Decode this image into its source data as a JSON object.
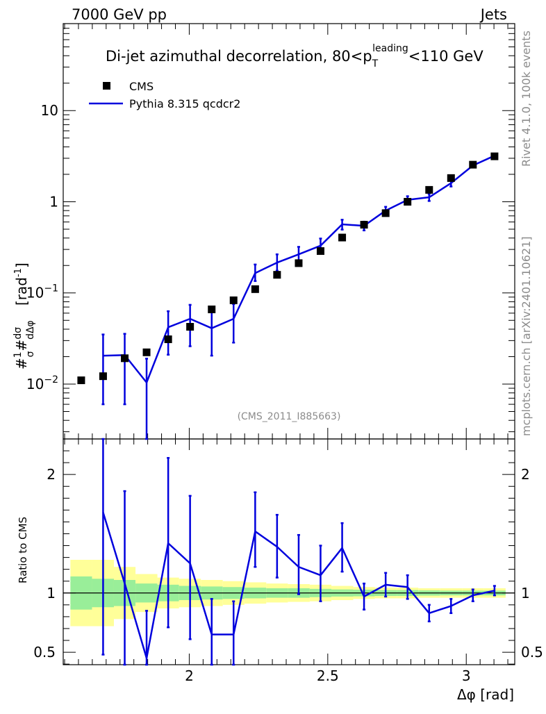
{
  "header": {
    "energy_label": "7000 GeV pp",
    "process_label": "Jets",
    "rivet_note": "Rivet 4.1.0,  100k events",
    "source_note": "mcplots.cern.ch [arXiv:2401.10621]",
    "analysis_tag": "(CMS_2011_I885663)"
  },
  "chart_data": {
    "type": "line",
    "title": "Di-jet azimuthal decorrelation, 80<p_T^leading<110 GeV",
    "title_pre": "Di-jet azimuthal decorrelation, 80<p",
    "title_sub": "T",
    "title_sup": "leading",
    "title_post": "<110 GeV",
    "xlabel": "Δφ [rad]",
    "ylabel": "#frac{1}{σ}#frac{dσ}{dΔφ} [rad⁻¹]",
    "ylabel_main": "[rad",
    "ylabel_exp": "-1",
    "ylabel_close": "]",
    "ratio_ylabel": "Ratio to CMS",
    "xlim": [
      1.545,
      3.175
    ],
    "ylim": [
      0.0025,
      90
    ],
    "yscale": "log",
    "ratio_ylim": [
      0.395,
      2.3
    ],
    "x_ticks": [
      {
        "value": 2.0,
        "label": "2"
      },
      {
        "value": 2.5,
        "label": "2.5"
      },
      {
        "value": 3.0,
        "label": "3"
      }
    ],
    "y_ticks": [
      {
        "value": 0.01,
        "label": "10",
        "exp": "−2"
      },
      {
        "value": 0.1,
        "label": "10",
        "exp": "−1"
      },
      {
        "value": 1,
        "label": "1",
        "exp": ""
      },
      {
        "value": 10,
        "label": "10",
        "exp": ""
      }
    ],
    "ratio_ticks": [
      {
        "value": 0.5,
        "label": "0.5"
      },
      {
        "value": 1,
        "label": "1"
      },
      {
        "value": 2,
        "label": "2"
      }
    ],
    "legend": [
      {
        "name": "CMS",
        "marker": "square",
        "color": "#000000"
      },
      {
        "name": "Pythia 8.315 qcdcr2",
        "marker": "line",
        "color": "#0000dd"
      }
    ],
    "bins": [
      {
        "lo": 1.571,
        "hi": 1.649
      },
      {
        "lo": 1.649,
        "hi": 1.728
      },
      {
        "lo": 1.728,
        "hi": 1.806
      },
      {
        "lo": 1.806,
        "hi": 1.885
      },
      {
        "lo": 1.885,
        "hi": 1.963
      },
      {
        "lo": 1.963,
        "hi": 2.042
      },
      {
        "lo": 2.042,
        "hi": 2.121
      },
      {
        "lo": 2.121,
        "hi": 2.199
      },
      {
        "lo": 2.199,
        "hi": 2.278
      },
      {
        "lo": 2.278,
        "hi": 2.356
      },
      {
        "lo": 2.356,
        "hi": 2.435
      },
      {
        "lo": 2.435,
        "hi": 2.513
      },
      {
        "lo": 2.513,
        "hi": 2.592
      },
      {
        "lo": 2.592,
        "hi": 2.67
      },
      {
        "lo": 2.67,
        "hi": 2.749
      },
      {
        "lo": 2.749,
        "hi": 2.827
      },
      {
        "lo": 2.827,
        "hi": 2.906
      },
      {
        "lo": 2.906,
        "hi": 2.985
      },
      {
        "lo": 2.985,
        "hi": 3.063
      },
      {
        "lo": 3.063,
        "hi": 3.142
      }
    ],
    "cms": {
      "x": [
        1.61,
        1.689,
        1.767,
        1.846,
        1.924,
        2.003,
        2.081,
        2.16,
        2.238,
        2.317,
        2.395,
        2.474,
        2.552,
        2.631,
        2.709,
        2.788,
        2.866,
        2.945,
        3.024,
        3.102
      ],
      "y": [
        0.011,
        0.0122,
        0.0192,
        0.0223,
        0.031,
        0.0425,
        0.066,
        0.083,
        0.11,
        0.158,
        0.212,
        0.288,
        0.405,
        0.56,
        0.75,
        1.0,
        1.35,
        1.82,
        2.55,
        3.15
      ]
    },
    "mc": {
      "x": [
        1.689,
        1.767,
        1.846,
        1.924,
        2.003,
        2.081,
        2.16,
        2.238,
        2.317,
        2.395,
        2.474,
        2.552,
        2.631,
        2.709,
        2.788,
        2.866,
        2.945,
        3.024,
        3.102
      ],
      "y": [
        0.0205,
        0.0208,
        0.0104,
        0.042,
        0.052,
        0.041,
        0.052,
        0.165,
        0.215,
        0.265,
        0.33,
        0.565,
        0.545,
        0.8,
        1.05,
        1.12,
        1.6,
        2.5,
        3.2
      ],
      "err_low": [
        0.0145,
        0.0148,
        0.0104,
        0.021,
        0.026,
        0.0205,
        0.0235,
        0.03,
        0.04,
        0.045,
        0.055,
        0.07,
        0.06,
        0.07,
        0.09,
        0.1,
        0.13,
        0.1,
        0.1
      ],
      "err_high": [
        0.0145,
        0.0148,
        0.0086,
        0.021,
        0.022,
        0.0205,
        0.0235,
        0.04,
        0.05,
        0.055,
        0.065,
        0.07,
        0.06,
        0.08,
        0.1,
        0.1,
        0.12,
        0.12,
        0.1
      ]
    },
    "ratio": {
      "x": [
        1.689,
        1.767,
        1.846,
        1.924,
        2.003,
        2.081,
        2.16,
        2.238,
        2.317,
        2.395,
        2.474,
        2.552,
        2.631,
        2.709,
        2.788,
        2.866,
        2.945,
        3.024,
        3.102
      ],
      "y": [
        1.68,
        1.08,
        0.45,
        1.42,
        1.25,
        0.65,
        0.65,
        1.52,
        1.39,
        1.22,
        1.15,
        1.38,
        0.97,
        1.07,
        1.05,
        0.83,
        0.89,
        0.98,
        1.02
      ],
      "err_low": [
        1.2,
        0.75,
        0.1,
        0.71,
        0.64,
        0.3,
        0.28,
        0.3,
        0.26,
        0.23,
        0.22,
        0.2,
        0.11,
        0.1,
        0.1,
        0.07,
        0.06,
        0.05,
        0.04
      ],
      "err_high": [
        0.85,
        0.78,
        0.4,
        0.72,
        0.57,
        0.3,
        0.28,
        0.33,
        0.27,
        0.27,
        0.25,
        0.21,
        0.11,
        0.1,
        0.1,
        0.07,
        0.06,
        0.05,
        0.04
      ]
    },
    "bands": {
      "color_outer": "#ffff99",
      "color_inner": "#99ee99",
      "outer_halfwidth": [
        0.28,
        0.28,
        0.22,
        0.16,
        0.13,
        0.12,
        0.11,
        0.1,
        0.09,
        0.08,
        0.075,
        0.07,
        0.06,
        0.05,
        0.045,
        0.045,
        0.04,
        0.04,
        0.04,
        0.04
      ],
      "inner_halfwidth": [
        0.14,
        0.12,
        0.11,
        0.08,
        0.07,
        0.06,
        0.055,
        0.05,
        0.045,
        0.04,
        0.04,
        0.035,
        0.03,
        0.028,
        0.025,
        0.025,
        0.022,
        0.02,
        0.02,
        0.02
      ]
    }
  }
}
